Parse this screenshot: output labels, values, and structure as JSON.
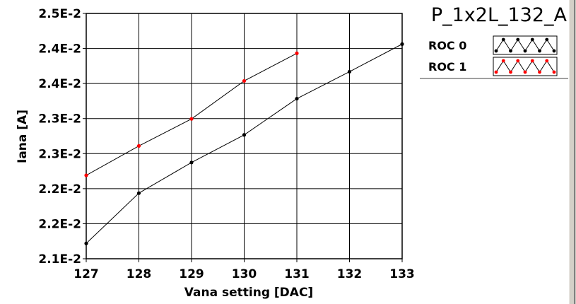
{
  "chart_data": {
    "type": "line",
    "title": "P_1x2L_132_A",
    "xlabel": "Vana setting [DAC]",
    "ylabel": "Iana [A]",
    "xlim": [
      127,
      133
    ],
    "ylim": [
      0.021,
      0.025
    ],
    "x_ticks": [
      "127",
      "128",
      "129",
      "130",
      "131",
      "132",
      "133"
    ],
    "y_ticks": [
      "2.1E-2",
      "2.2E-2",
      "2.2E-2",
      "2.3E-2",
      "2.3E-2",
      "2.4E-2",
      "2.4E-2",
      "2.5E-2"
    ],
    "grid": true,
    "legend_position": "top-right",
    "series": [
      {
        "name": "ROC 0",
        "color": "#000000",
        "x": [
          127,
          128,
          129,
          130,
          131,
          132,
          133
        ],
        "y": [
          0.02125,
          0.02207,
          0.02257,
          0.02302,
          0.02361,
          0.02405,
          0.0245
        ]
      },
      {
        "name": "ROC 1",
        "color": "#ff0000",
        "x": [
          127,
          128,
          129,
          130,
          131
        ],
        "y": [
          0.02236,
          0.02284,
          0.02328,
          0.0239,
          0.02435
        ]
      }
    ]
  }
}
